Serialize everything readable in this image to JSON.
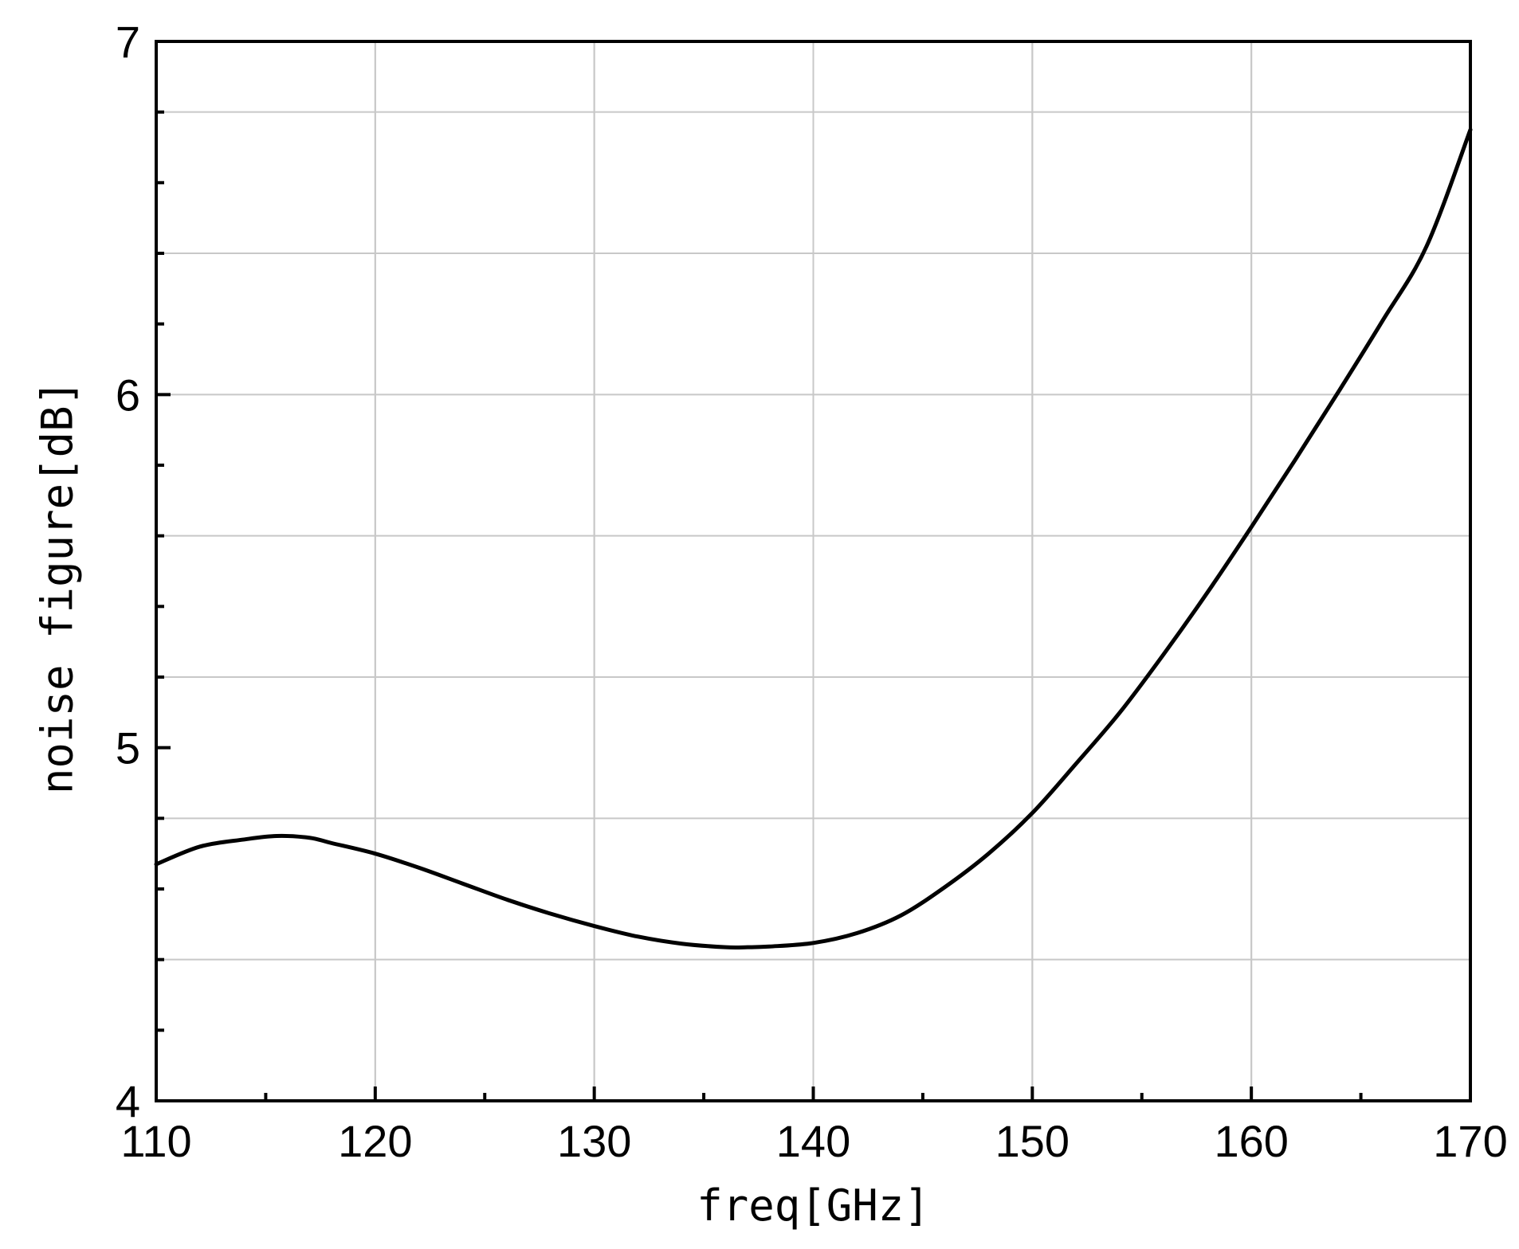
{
  "chart_data": {
    "type": "line",
    "title": "",
    "xlabel": "freq[GHz]",
    "ylabel": "noise figure[dB]",
    "xlim": [
      110,
      170
    ],
    "ylim": [
      4,
      7
    ],
    "x_ticks": [
      110,
      120,
      130,
      140,
      150,
      160,
      170
    ],
    "x_tick_labels": [
      "110",
      "120",
      "130",
      "140",
      "150",
      "160",
      "170"
    ],
    "x_minor_step": 5,
    "y_ticks": [
      4,
      5,
      6,
      7
    ],
    "y_tick_labels": [
      "4",
      "5",
      "6",
      "7"
    ],
    "y_minor_step": 0.2,
    "grid": true,
    "legend": "none",
    "colors": {
      "line": "#000000",
      "grid": "#c8c8c8",
      "axes": "#000000"
    },
    "series": [
      {
        "x": [
          110,
          112,
          114,
          115.5,
          117,
          118,
          120,
          122,
          124,
          126,
          128,
          130,
          132,
          134,
          136,
          137,
          138,
          140,
          142,
          144,
          146,
          148,
          150,
          152,
          154,
          156,
          158,
          160,
          162,
          164,
          166,
          168,
          170
        ],
        "values": [
          4.67,
          4.72,
          4.74,
          4.75,
          4.745,
          4.73,
          4.7,
          4.66,
          4.615,
          4.57,
          4.53,
          4.495,
          4.465,
          4.445,
          4.435,
          4.435,
          4.437,
          4.447,
          4.475,
          4.525,
          4.605,
          4.7,
          4.815,
          4.955,
          5.1,
          5.265,
          5.44,
          5.625,
          5.815,
          6.01,
          6.21,
          6.42,
          6.75
        ]
      }
    ]
  }
}
